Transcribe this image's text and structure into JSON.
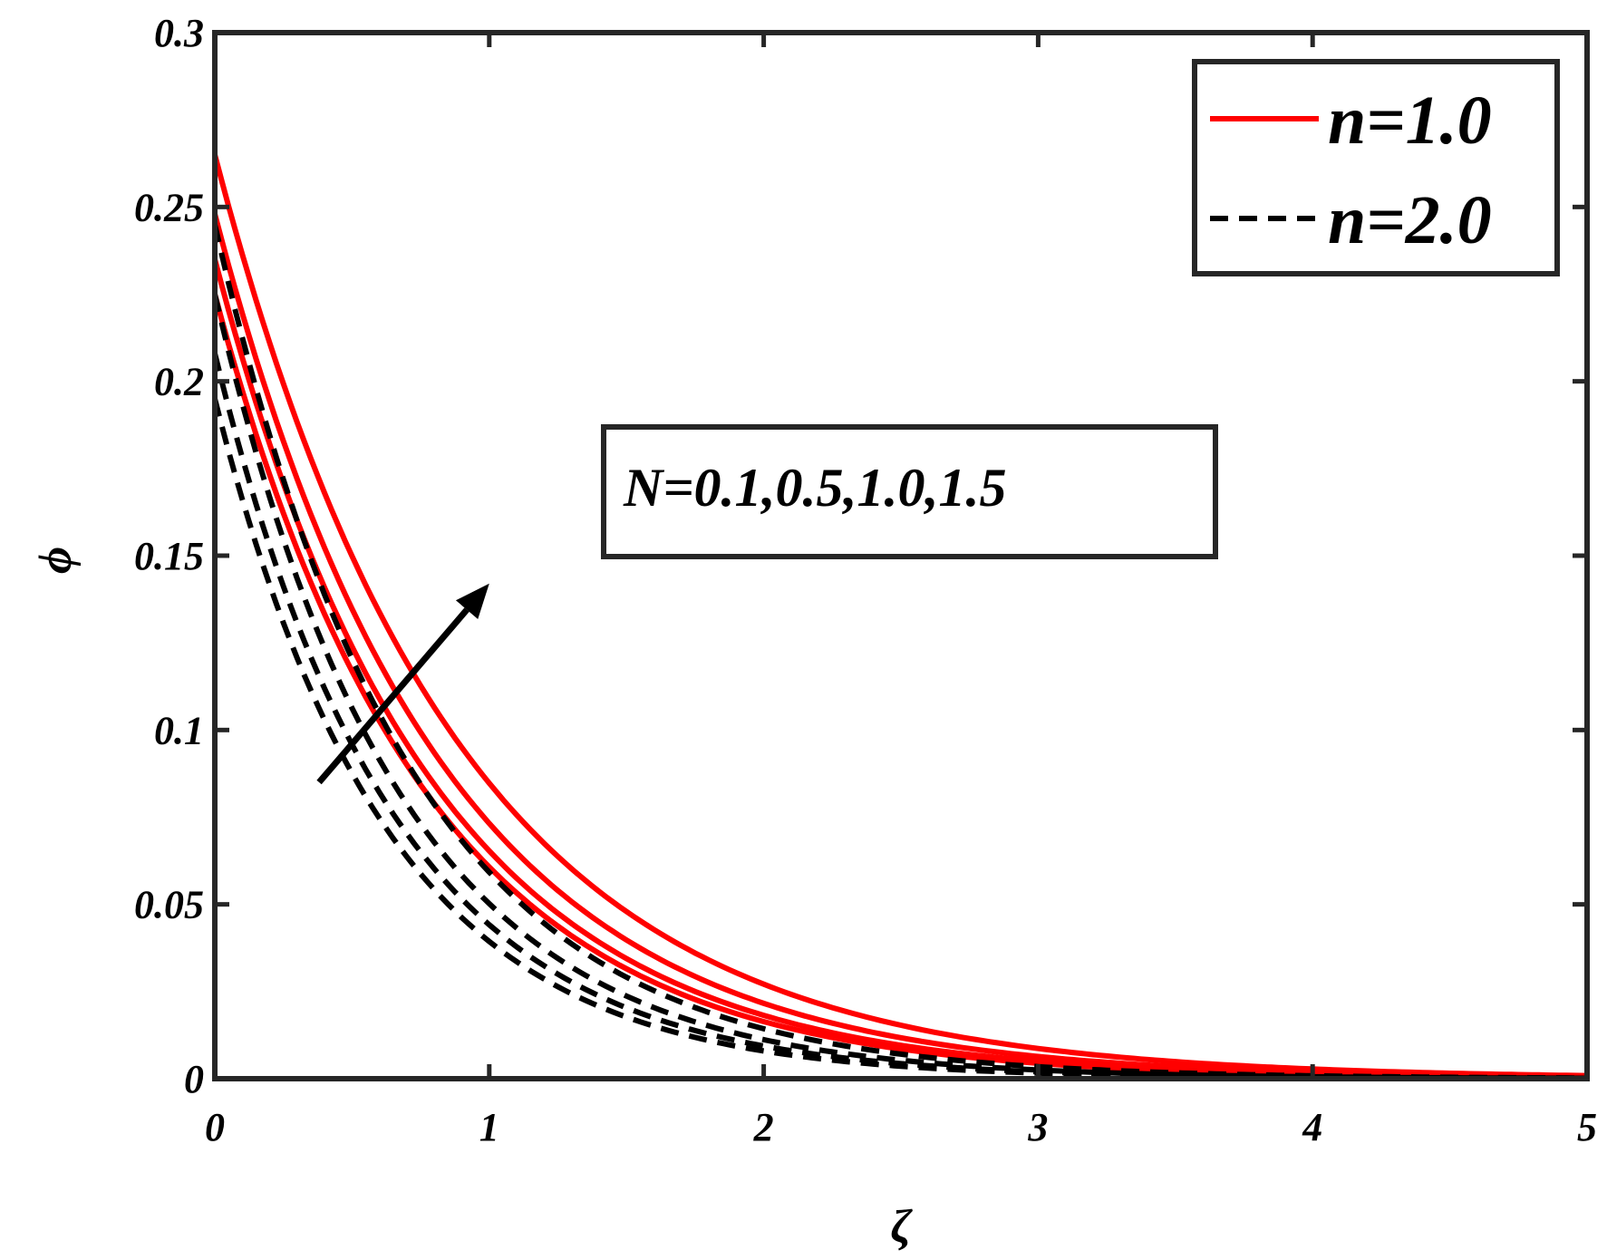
{
  "chart_data": {
    "type": "line",
    "xlabel": "ζ",
    "ylabel": "ϕ",
    "xlim": [
      0,
      5
    ],
    "ylim": [
      0,
      0.3
    ],
    "xticks": [
      0,
      1,
      2,
      3,
      4,
      5
    ],
    "xtick_labels": [
      "0",
      "1",
      "2",
      "3",
      "4",
      "5"
    ],
    "yticks": [
      0,
      0.05,
      0.1,
      0.15,
      0.2,
      0.25,
      0.3
    ],
    "ytick_labels": [
      "0",
      "0.05",
      "0.1",
      "0.15",
      "0.2",
      "0.25",
      "0.3"
    ],
    "grid": false,
    "legend_position": "top-right",
    "legend": [
      {
        "label": "n=1.0",
        "color": "#ff0000",
        "style": "solid"
      },
      {
        "label": "n=2.0",
        "color": "#000000",
        "style": "dashed"
      }
    ],
    "annotation": {
      "text": "N=0.1,0.5,1.0,1.5",
      "arrow": "increasing N",
      "arrow_from": [
        0.38,
        0.085
      ],
      "arrow_to": [
        1.0,
        0.142
      ]
    },
    "series": [
      {
        "group": "n=1.0",
        "color": "#ff0000",
        "style": "solid",
        "N": 0.1,
        "phi0": 0.225,
        "decay": 1.31
      },
      {
        "group": "n=1.0",
        "color": "#ff0000",
        "style": "solid",
        "N": 0.5,
        "phi0": 0.235,
        "decay": 1.28
      },
      {
        "group": "n=1.0",
        "color": "#ff0000",
        "style": "solid",
        "N": 1.0,
        "phi0": 0.248,
        "decay": 1.22
      },
      {
        "group": "n=1.0",
        "color": "#ff0000",
        "style": "solid",
        "N": 1.5,
        "phi0": 0.265,
        "decay": 1.14
      },
      {
        "group": "n=2.0",
        "color": "#000000",
        "style": "dashed",
        "N": 0.1,
        "phi0": 0.195,
        "decay": 1.6
      },
      {
        "group": "n=2.0",
        "color": "#000000",
        "style": "dashed",
        "N": 0.5,
        "phi0": 0.208,
        "decay": 1.55
      },
      {
        "group": "n=2.0",
        "color": "#000000",
        "style": "dashed",
        "N": 1.0,
        "phi0": 0.225,
        "decay": 1.5
      },
      {
        "group": "n=2.0",
        "color": "#000000",
        "style": "dashed",
        "N": 1.5,
        "phi0": 0.245,
        "decay": 1.42
      }
    ]
  }
}
